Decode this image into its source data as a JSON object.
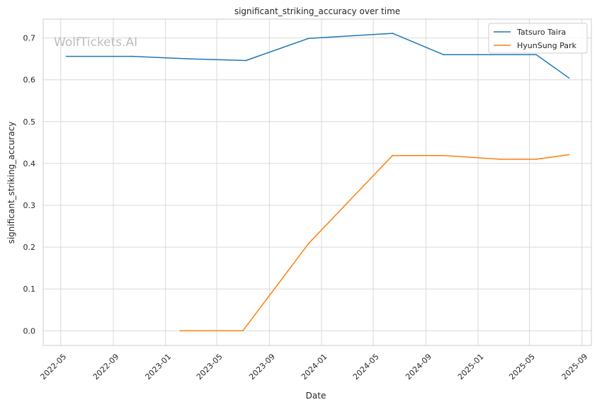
{
  "chart_data": {
    "type": "line",
    "title": "significant_striking_accuracy over time",
    "xlabel": "Date",
    "ylabel": "significant_striking_accuracy",
    "watermark": "WolfTickets.AI",
    "x_ticks": [
      "2022-05",
      "2022-09",
      "2023-01",
      "2023-05",
      "2023-09",
      "2024-01",
      "2024-05",
      "2024-09",
      "2025-01",
      "2025-05",
      "2025-09"
    ],
    "y_ticks": [
      0.0,
      0.1,
      0.2,
      0.3,
      0.4,
      0.5,
      0.6,
      0.7
    ],
    "ylim": [
      -0.035,
      0.745
    ],
    "xlim": [
      "2022-03-21",
      "2025-09-23"
    ],
    "grid": true,
    "legend_position": "top-right",
    "series": [
      {
        "name": "Tatsuro Taira",
        "color": "#1f77b4",
        "x": [
          "2022-05-14",
          "2022-10-15",
          "2023-02-25",
          "2023-07-08",
          "2023-12-02",
          "2024-06-15",
          "2024-10-12",
          "2025-05-17",
          "2025-08-02"
        ],
        "y": [
          0.656,
          0.656,
          0.65,
          0.646,
          0.699,
          0.711,
          0.66,
          0.66,
          0.604
        ]
      },
      {
        "name": "HyunSung Park",
        "color": "#ff7f0e",
        "x": [
          "2023-02-04",
          "2023-07-01",
          "2023-12-02",
          "2024-06-15",
          "2024-10-12",
          "2025-02-22",
          "2025-05-17",
          "2025-08-02"
        ],
        "y": [
          0.0,
          0.0,
          0.209,
          0.419,
          0.419,
          0.41,
          0.41,
          0.421
        ]
      }
    ]
  }
}
